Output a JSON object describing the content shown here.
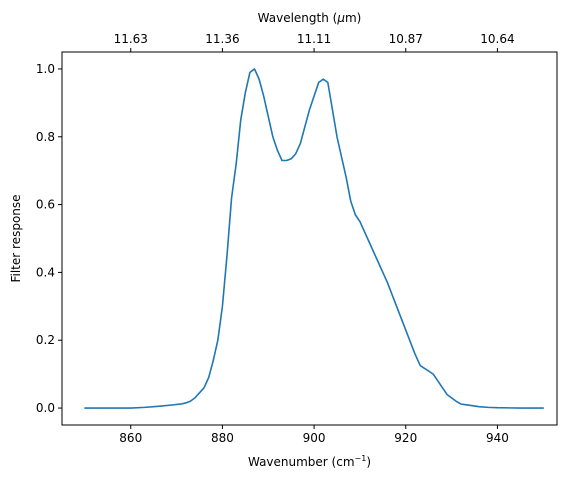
{
  "chart_data": {
    "type": "line",
    "xlabel": "Wavenumber (cm",
    "xlabel_sup": "−1",
    "xlabel_end": ")",
    "ylabel": "Filter response",
    "top_xlabel": "Wavelength (",
    "top_xlabel_unit": "μ",
    "top_xlabel_end": "m)",
    "xlim": [
      845,
      953
    ],
    "ylim": [
      -0.05,
      1.05
    ],
    "xticks": [
      {
        "value": 860,
        "label": "860"
      },
      {
        "value": 880,
        "label": "880"
      },
      {
        "value": 900,
        "label": "900"
      },
      {
        "value": 920,
        "label": "920"
      },
      {
        "value": 940,
        "label": "940"
      }
    ],
    "yticks": [
      {
        "value": 0.0,
        "label": "0.0"
      },
      {
        "value": 0.2,
        "label": "0.2"
      },
      {
        "value": 0.4,
        "label": "0.4"
      },
      {
        "value": 0.6,
        "label": "0.6"
      },
      {
        "value": 0.8,
        "label": "0.8"
      },
      {
        "value": 1.0,
        "label": "1.0"
      }
    ],
    "top_xticks": [
      {
        "value": 860,
        "label": "11.63"
      },
      {
        "value": 880,
        "label": "11.36"
      },
      {
        "value": 900,
        "label": "11.11"
      },
      {
        "value": 920,
        "label": "10.87"
      },
      {
        "value": 940,
        "label": "10.64"
      }
    ],
    "grid": false,
    "series": [
      {
        "color": "#1f77b4",
        "x": [
          850,
          855,
          860,
          863,
          866,
          869,
          871,
          872,
          873,
          874,
          875,
          876,
          877,
          878,
          879,
          880,
          881,
          882,
          883,
          884,
          885,
          886,
          887,
          888,
          889,
          890,
          891,
          892,
          893,
          894,
          895,
          896,
          897,
          898,
          899,
          900,
          901,
          902,
          903,
          904,
          905,
          906,
          907,
          908,
          909,
          910,
          911,
          912,
          914,
          916,
          918,
          920,
          922,
          923,
          923.2,
          926,
          927,
          928,
          929,
          930,
          931,
          932,
          933,
          934,
          936,
          938,
          940,
          945,
          950
        ],
        "y": [
          0.0,
          0.0,
          0.0,
          0.002,
          0.005,
          0.009,
          0.012,
          0.015,
          0.02,
          0.03,
          0.045,
          0.06,
          0.09,
          0.14,
          0.2,
          0.3,
          0.45,
          0.62,
          0.72,
          0.85,
          0.93,
          0.99,
          1.0,
          0.97,
          0.92,
          0.86,
          0.8,
          0.76,
          0.73,
          0.73,
          0.735,
          0.75,
          0.78,
          0.83,
          0.88,
          0.92,
          0.96,
          0.97,
          0.96,
          0.88,
          0.8,
          0.74,
          0.68,
          0.61,
          0.57,
          0.55,
          0.52,
          0.49,
          0.43,
          0.37,
          0.3,
          0.23,
          0.16,
          0.13,
          0.125,
          0.1,
          0.08,
          0.06,
          0.04,
          0.03,
          0.02,
          0.012,
          0.01,
          0.008,
          0.004,
          0.002,
          0.001,
          0.0,
          0.0
        ]
      }
    ]
  }
}
